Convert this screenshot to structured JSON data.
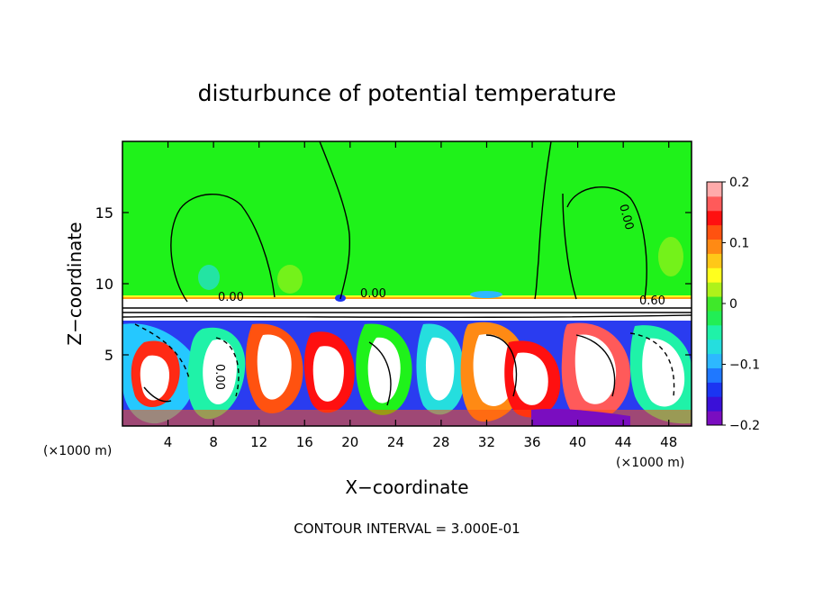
{
  "chart_data": {
    "type": "heatmap",
    "title": "disturbunce of potential temperature",
    "xlabel": "X−coordinate",
    "ylabel": "Z−coordinate",
    "x_unit": "(×1000 m)",
    "z_unit": "(×1000 m)",
    "xlim": [
      0,
      50
    ],
    "ylim": [
      0,
      20
    ],
    "x_ticks": [
      4,
      8,
      12,
      16,
      20,
      24,
      28,
      32,
      36,
      40,
      44,
      48
    ],
    "y_ticks": [
      5,
      10,
      15
    ],
    "colorbar": {
      "range": [
        -0.2,
        0.2
      ],
      "ticks": [
        "0.2",
        "0.1",
        "0",
        "−0.1",
        "−0.2"
      ],
      "colors": [
        "#7a0dc0",
        "#3a10d8",
        "#1b35f2",
        "#1f78ff",
        "#2db8ff",
        "#25dede",
        "#1ff2a8",
        "#22ee55",
        "#3fe82a",
        "#aef21a",
        "#ffff1e",
        "#ffc818",
        "#ff8a14",
        "#ff5210",
        "#ff1010",
        "#ff5a5a",
        "#ffaaaa"
      ]
    },
    "contour_interval_text": "CONTOUR INTERVAL = 3.000E-01",
    "contour_labels": [
      "0.00",
      "0.00",
      "0.60",
      "0.00",
      "0.00"
    ],
    "grid": false,
    "legend": "right"
  }
}
